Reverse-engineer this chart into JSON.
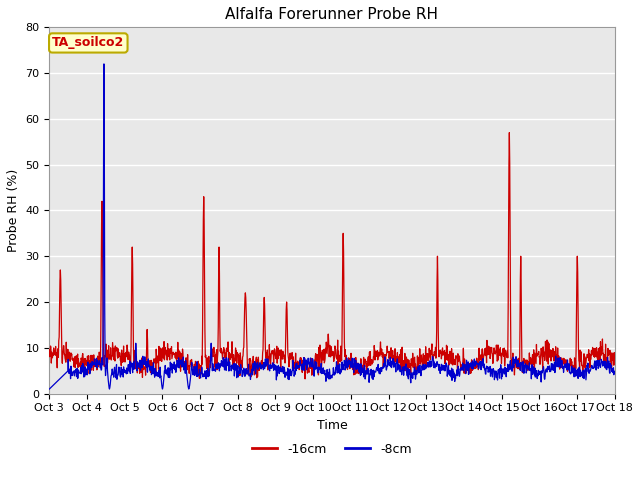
{
  "title": "Alfalfa Forerunner Probe RH",
  "xlabel": "Time",
  "ylabel": "Probe RH (%)",
  "ylim": [
    0,
    80
  ],
  "yticks": [
    0,
    10,
    20,
    30,
    40,
    50,
    60,
    70,
    80
  ],
  "xtick_labels": [
    "Oct 3",
    "Oct 4",
    "Oct 5",
    "Oct 6",
    "Oct 7",
    "Oct 8",
    "Oct 9",
    "Oct 10",
    "Oct 11",
    "Oct 12",
    "Oct 13",
    "Oct 14",
    "Oct 15",
    "Oct 16",
    "Oct 17",
    "Oct 18"
  ],
  "legend_labels": [
    "-16cm",
    "-8cm"
  ],
  "legend_colors": [
    "#cc0000",
    "#0000cc"
  ],
  "line_color_red": "#cc0000",
  "line_color_blue": "#0000cc",
  "bg_color": "#e8e8e8",
  "annotation_text": "TA_soilco2",
  "annotation_bg": "#ffffcc",
  "annotation_border": "#bbaa00",
  "title_fontsize": 11,
  "axis_fontsize": 9,
  "tick_fontsize": 8
}
